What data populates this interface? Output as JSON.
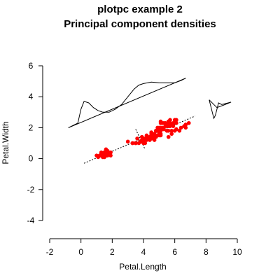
{
  "chart_data": {
    "type": "scatter",
    "title": "plotpc example 2",
    "subtitle": "Principal component densities",
    "xlabel": "Petal.Length",
    "ylabel": "Petal.Width",
    "xlim": [
      -2,
      10
    ],
    "ylim": [
      -4,
      6
    ],
    "x_ticks": [
      "-2",
      "0",
      "2",
      "4",
      "6",
      "8",
      "10"
    ],
    "y_ticks": [
      "-4",
      "-2",
      "0",
      "2",
      "4",
      "6"
    ],
    "point_color": "#ff0000",
    "points": {
      "x": [
        1.4,
        1.4,
        1.3,
        1.5,
        1.4,
        1.7,
        1.4,
        1.5,
        1.4,
        1.5,
        1.5,
        1.6,
        1.4,
        1.1,
        1.2,
        1.5,
        1.3,
        1.4,
        1.7,
        1.5,
        1.7,
        1.5,
        1.0,
        1.7,
        1.9,
        1.6,
        1.6,
        1.5,
        1.4,
        1.6,
        1.6,
        1.5,
        1.5,
        1.4,
        1.5,
        1.2,
        1.3,
        1.4,
        1.3,
        1.5,
        1.3,
        1.3,
        1.3,
        1.6,
        1.9,
        1.4,
        1.6,
        1.4,
        1.5,
        1.4,
        4.7,
        4.5,
        4.9,
        4.0,
        4.6,
        4.5,
        4.7,
        3.3,
        4.6,
        3.9,
        3.5,
        4.2,
        4.0,
        4.7,
        3.6,
        4.4,
        4.5,
        4.1,
        4.5,
        3.9,
        4.8,
        4.0,
        4.9,
        4.7,
        4.3,
        4.4,
        4.8,
        5.0,
        4.5,
        3.5,
        3.8,
        3.7,
        3.9,
        5.1,
        4.5,
        4.5,
        4.7,
        4.4,
        4.1,
        4.0,
        4.4,
        4.6,
        4.0,
        3.3,
        4.2,
        4.2,
        4.2,
        4.3,
        3.0,
        4.1,
        6.0,
        5.1,
        5.9,
        5.6,
        5.8,
        6.6,
        4.5,
        6.3,
        5.8,
        6.1,
        5.1,
        5.3,
        5.5,
        5.0,
        5.1,
        5.3,
        5.5,
        6.7,
        6.9,
        5.0,
        5.7,
        4.9,
        6.7,
        4.9,
        5.7,
        6.0,
        4.8,
        4.9,
        5.6,
        5.8,
        6.1,
        6.4,
        5.6,
        5.1,
        5.6,
        6.1,
        5.6,
        5.5,
        4.8,
        5.4,
        5.6,
        5.1,
        5.1,
        5.9,
        5.7,
        5.2,
        5.0,
        5.2,
        5.4,
        5.1
      ],
      "y": [
        0.2,
        0.2,
        0.2,
        0.2,
        0.2,
        0.4,
        0.3,
        0.2,
        0.2,
        0.1,
        0.2,
        0.2,
        0.1,
        0.1,
        0.2,
        0.4,
        0.4,
        0.3,
        0.3,
        0.3,
        0.2,
        0.4,
        0.2,
        0.5,
        0.2,
        0.2,
        0.4,
        0.2,
        0.2,
        0.2,
        0.2,
        0.4,
        0.1,
        0.2,
        0.2,
        0.2,
        0.2,
        0.1,
        0.2,
        0.2,
        0.3,
        0.3,
        0.2,
        0.6,
        0.4,
        0.3,
        0.2,
        0.2,
        0.2,
        0.2,
        1.4,
        1.5,
        1.5,
        1.3,
        1.5,
        1.3,
        1.6,
        1.0,
        1.3,
        1.4,
        1.0,
        1.5,
        1.0,
        1.4,
        1.3,
        1.4,
        1.5,
        1.0,
        1.5,
        1.1,
        1.8,
        1.3,
        1.5,
        1.2,
        1.3,
        1.4,
        1.4,
        1.7,
        1.5,
        1.0,
        1.1,
        1.0,
        1.2,
        1.6,
        1.5,
        1.6,
        1.5,
        1.3,
        1.3,
        1.3,
        1.2,
        1.4,
        1.2,
        1.0,
        1.3,
        1.2,
        1.3,
        1.3,
        1.1,
        1.3,
        2.5,
        1.9,
        2.1,
        1.8,
        2.2,
        2.1,
        1.7,
        1.8,
        1.8,
        2.5,
        2.0,
        1.9,
        2.1,
        2.0,
        2.4,
        2.3,
        1.8,
        2.2,
        2.3,
        1.5,
        2.3,
        2.0,
        2.0,
        1.8,
        2.1,
        1.8,
        1.8,
        1.8,
        2.1,
        1.6,
        1.9,
        2.0,
        2.2,
        1.5,
        1.4,
        2.3,
        2.4,
        1.8,
        1.8,
        2.1,
        2.4,
        2.3,
        1.9,
        2.3,
        2.5,
        2.3,
        1.9,
        2.0,
        2.3,
        1.8
      ]
    },
    "pc1_line": {
      "x": [
        0.2,
        7.3
      ],
      "y": [
        -0.3,
        2.75
      ]
    },
    "pc2_line": {
      "x": [
        3.5,
        4.1
      ],
      "y": [
        1.9,
        0.6
      ]
    },
    "pc1_density": {
      "baseline": {
        "x": [
          -0.8,
          6.7
        ],
        "y": [
          2.0,
          5.2
        ]
      },
      "curve": {
        "x": [
          -0.8,
          -0.2,
          0.0,
          0.2,
          0.5,
          0.8,
          1.1,
          1.4,
          1.8,
          2.2,
          2.6,
          3.0,
          3.4,
          3.7,
          4.0,
          4.5,
          5.0,
          5.5,
          6.0,
          6.4,
          6.7
        ],
        "y": [
          2.0,
          2.3,
          3.2,
          3.7,
          3.6,
          3.3,
          3.1,
          3.0,
          3.0,
          3.2,
          3.5,
          4.0,
          4.5,
          4.75,
          4.85,
          4.95,
          4.9,
          4.9,
          4.9,
          5.05,
          5.2
        ]
      }
    },
    "pc2_density": {
      "x": [
        8.2,
        8.5,
        8.7,
        9.1,
        9.6,
        9.0,
        8.8,
        8.6,
        8.5,
        8.2
      ],
      "y": [
        3.8,
        3.5,
        3.3,
        3.45,
        3.65,
        3.5,
        3.6,
        2.8,
        2.6,
        3.8
      ]
    }
  }
}
